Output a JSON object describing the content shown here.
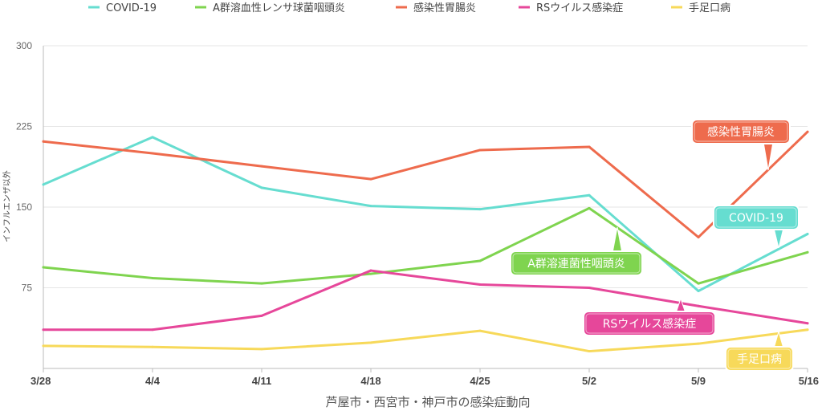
{
  "chart_data": {
    "type": "line",
    "title": "芦屋市・西宮市・神戸市の感染症動向",
    "ylabel": "インフルエンザ以外",
    "xlabel": "",
    "ylim": [
      0,
      300
    ],
    "yticks": [
      75,
      150,
      225,
      300
    ],
    "categories": [
      "3/28",
      "4/4",
      "4/11",
      "4/18",
      "4/25",
      "5/2",
      "5/9",
      "5/16"
    ],
    "series": [
      {
        "name": "COVID-19",
        "color": "#66ddd0",
        "values": [
          171,
          215,
          168,
          151,
          148,
          161,
          72,
          125
        ]
      },
      {
        "name": "A群溶血性レンサ球菌咽頭炎",
        "color": "#7fd44f",
        "values": [
          94,
          84,
          79,
          88,
          100,
          149,
          79,
          108
        ]
      },
      {
        "name": "感染性胃腸炎",
        "color": "#ee6b4d",
        "values": [
          211,
          200,
          188,
          176,
          203,
          206,
          122,
          220
        ]
      },
      {
        "name": "RSウイルス感染症",
        "color": "#e6479a",
        "values": [
          36,
          36,
          49,
          91,
          78,
          75,
          58,
          42
        ]
      },
      {
        "name": "手足口病",
        "color": "#f7d95a",
        "values": [
          21,
          20,
          18,
          24,
          35,
          16,
          23,
          36
        ]
      }
    ],
    "annotations": [
      {
        "text": "感染性胃腸炎",
        "series": 2
      },
      {
        "text": "COVID-19",
        "series": 0
      },
      {
        "text": "A群溶連菌性咽頭炎",
        "series": 1
      },
      {
        "text": "RSウイルス感染症",
        "series": 3
      },
      {
        "text": "手足口病",
        "series": 4
      }
    ]
  }
}
